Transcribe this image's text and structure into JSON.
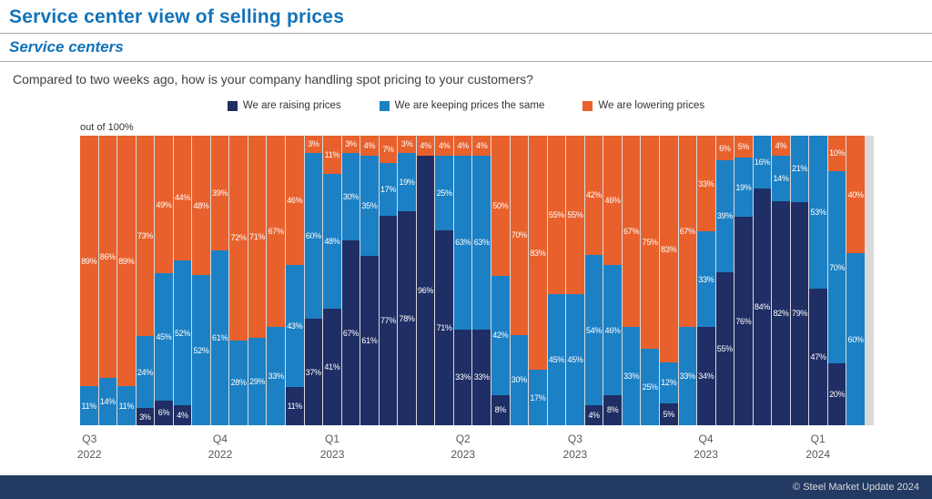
{
  "header": {
    "title": "Service center view of selling prices",
    "subtitle": "Service centers",
    "question": "Compared to two weeks ago, how is your company handling spot pricing to your customers?"
  },
  "chart_data": {
    "type": "bar",
    "stacked": true,
    "unit": "percent",
    "note": "out of 100%",
    "label_min_value": 3,
    "bar_count": 42,
    "stack_order_bottom_to_top": [
      "We are raising prices",
      "We are keeping prices the same",
      "We are lowering prices"
    ],
    "legend_position": "top-center",
    "series": [
      {
        "name": "We are raising prices",
        "color": "#1f2e64",
        "values": [
          0,
          0,
          0,
          3,
          6,
          4,
          0,
          0,
          0,
          0,
          0,
          11,
          37,
          41,
          67,
          61,
          77,
          78,
          96,
          71,
          33,
          33,
          8,
          0,
          0,
          0,
          0,
          4,
          8,
          0,
          0,
          5,
          0,
          34,
          55,
          76,
          84,
          82,
          79,
          47,
          20,
          0
        ]
      },
      {
        "name": "We are keeping prices the same",
        "color": "#1c80c4",
        "values": [
          11,
          14,
          11,
          24,
          45,
          52,
          52,
          61,
          28,
          29,
          33,
          43,
          60,
          48,
          30,
          35,
          17,
          19,
          0,
          25,
          63,
          63,
          42,
          30,
          17,
          45,
          45,
          54,
          46,
          33,
          25,
          12,
          33,
          33,
          39,
          19,
          16,
          14,
          21,
          53,
          70,
          60
        ]
      },
      {
        "name": "We are lowering prices",
        "color": "#e8612c",
        "values": [
          89,
          86,
          89,
          73,
          49,
          44,
          48,
          39,
          72,
          71,
          67,
          46,
          3,
          11,
          3,
          4,
          7,
          3,
          4,
          4,
          4,
          4,
          50,
          70,
          83,
          55,
          55,
          42,
          46,
          67,
          75,
          83,
          67,
          33,
          6,
          5,
          0,
          4,
          0,
          0,
          10,
          40
        ]
      }
    ],
    "x_ticks": [
      {
        "quarter": "Q3",
        "year": "2022",
        "bar_index": 0
      },
      {
        "quarter": "Q4",
        "year": "2022",
        "bar_index": 7
      },
      {
        "quarter": "Q1",
        "year": "2023",
        "bar_index": 13
      },
      {
        "quarter": "Q2",
        "year": "2023",
        "bar_index": 20
      },
      {
        "quarter": "Q3",
        "year": "2023",
        "bar_index": 26
      },
      {
        "quarter": "Q4",
        "year": "2023",
        "bar_index": 33
      },
      {
        "quarter": "Q1",
        "year": "2024",
        "bar_index": 39
      }
    ]
  },
  "footer": {
    "copyright": "© Steel Market Update 2024"
  },
  "colors": {
    "title_blue": "#1173b9",
    "raising_navy": "#1f2e64",
    "same_blue": "#1c80c4",
    "lowering_orange": "#e8612c",
    "footer_navy": "#233a63",
    "plot_background": "#d9d9d9"
  }
}
